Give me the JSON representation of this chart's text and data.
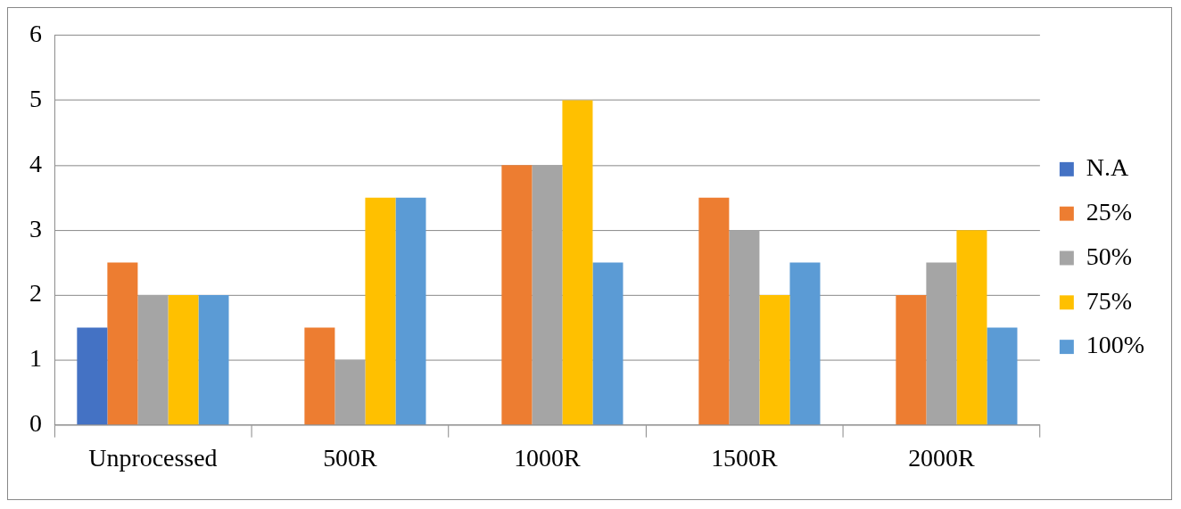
{
  "chart_data": {
    "type": "bar",
    "categories": [
      "Unprocessed",
      "500R",
      "1000R",
      "1500R",
      "2000R"
    ],
    "series": [
      {
        "name": "N.A",
        "color": "#4472c4",
        "values": [
          1.5,
          null,
          null,
          null,
          null
        ]
      },
      {
        "name": "25%",
        "color": "#ed7d31",
        "values": [
          2.5,
          1.5,
          4,
          3.5,
          2
        ]
      },
      {
        "name": "50%",
        "color": "#a5a5a5",
        "values": [
          2,
          1,
          4,
          3,
          2.5
        ]
      },
      {
        "name": "75%",
        "color": "#ffc000",
        "values": [
          2,
          3.5,
          5,
          2,
          3
        ]
      },
      {
        "name": "100%",
        "color": "#5b9bd5",
        "values": [
          2,
          3.5,
          2.5,
          2.5,
          1.5
        ]
      }
    ],
    "ylim": [
      0,
      6
    ],
    "yticks": [
      0,
      1,
      2,
      3,
      4,
      5,
      6
    ],
    "grid": "y",
    "legend": "right"
  }
}
